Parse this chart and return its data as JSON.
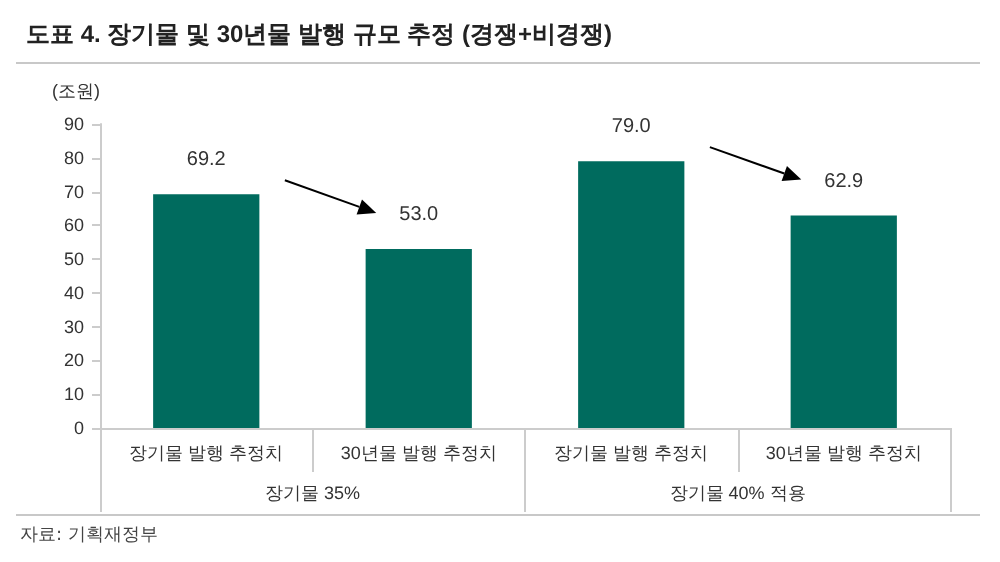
{
  "chart_data": {
    "type": "bar",
    "title": "도표 4. 장기물 및 30년물 발행 규모 추정 (경쟁+비경쟁)",
    "ylabel": "(조원)",
    "categories": [
      "장기물 발행 추정치",
      "30년물 발행 추정치",
      "장기물 발행 추정치",
      "30년물 발행 추정치"
    ],
    "values": [
      69.2,
      53.0,
      79.0,
      62.9
    ],
    "value_labels": [
      "69.2",
      "53.0",
      "79.0",
      "62.9"
    ],
    "color": "#006b5e",
    "ylim": [
      0,
      90
    ],
    "yticks": [
      0,
      10,
      20,
      30,
      40,
      50,
      60,
      70,
      80,
      90
    ],
    "grid": false,
    "annotations": [
      "장기물 35%",
      "장기물 40% 적용",
      "자료: 기획재정부"
    ]
  }
}
